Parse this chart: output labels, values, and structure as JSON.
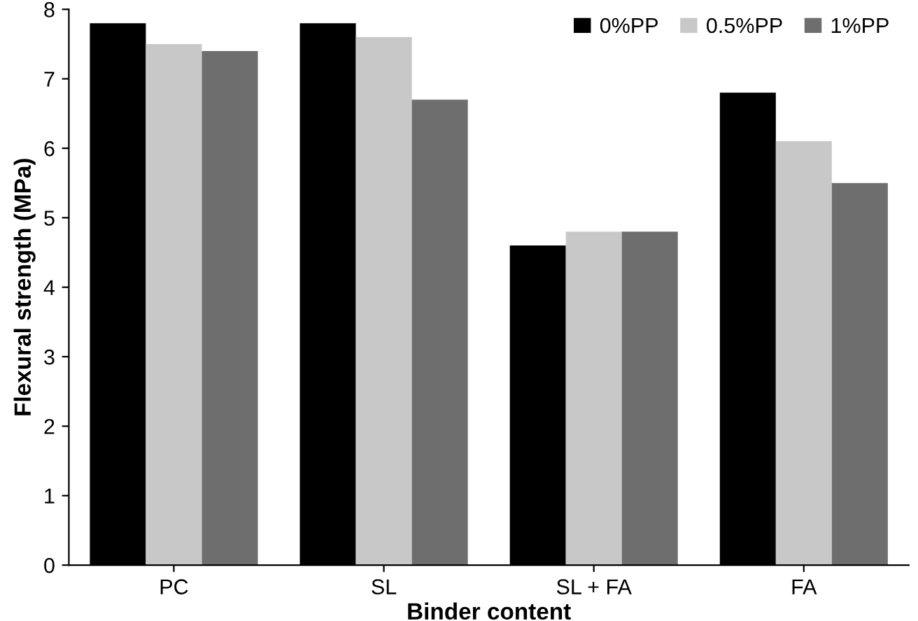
{
  "chart_data": {
    "type": "bar",
    "xlabel": "Binder content",
    "ylabel": "Flexural strength (MPa)",
    "categories": [
      "PC",
      "SL",
      "SL + FA",
      "FA"
    ],
    "series": [
      {
        "name": "0%PP",
        "color": "#000000",
        "values": [
          7.8,
          7.8,
          4.6,
          6.8
        ]
      },
      {
        "name": "0.5%PP",
        "color": "#c8c8c8",
        "values": [
          7.5,
          7.6,
          4.8,
          6.1
        ]
      },
      {
        "name": "1%PP",
        "color": "#6e6e6e",
        "values": [
          7.4,
          6.7,
          4.8,
          5.5
        ]
      }
    ],
    "ylim": [
      0,
      8
    ],
    "yticks": [
      0,
      1,
      2,
      3,
      4,
      5,
      6,
      7,
      8
    ],
    "grid": false,
    "legend": "top right"
  }
}
